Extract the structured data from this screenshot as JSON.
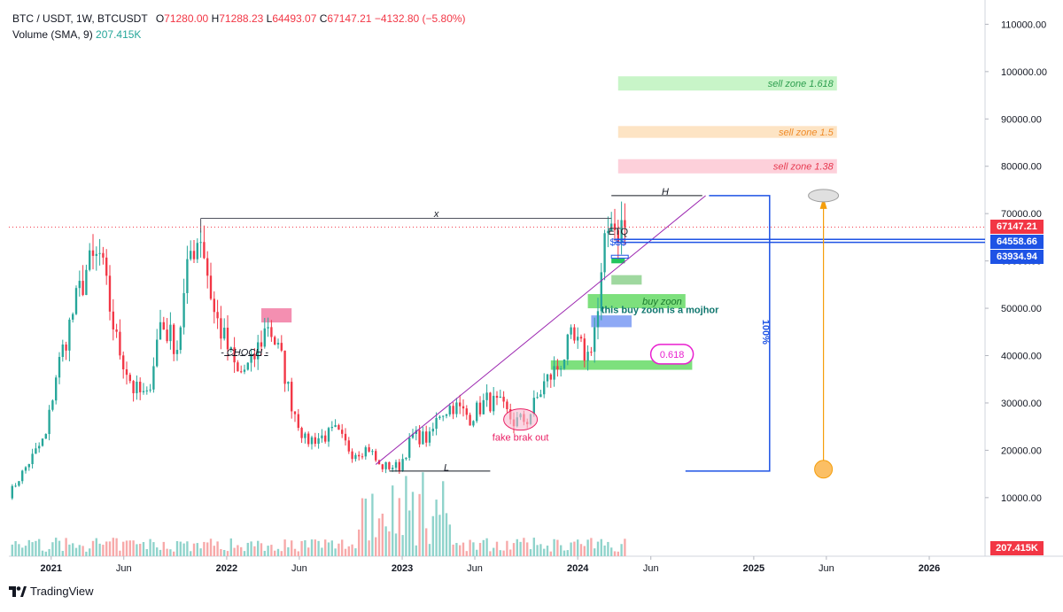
{
  "header": {
    "symbol": "BTC / USDT, 1W, BTCUSDT",
    "open_label": "O",
    "open": "71280.00",
    "high_label": "H",
    "high": "71288.23",
    "low_label": "L",
    "low": "64493.07",
    "close_label": "C",
    "close": "67147.21",
    "change": "−4132.80 (−5.80%)",
    "volume_label": "Volume (SMA, 9)",
    "volume_value": "207.415K"
  },
  "price_tags": [
    {
      "text": "67147.21",
      "price": 67147.21,
      "color": "#f23645"
    },
    {
      "text": "64558.66",
      "price": 64558.66,
      "color": "#1e53e5"
    },
    {
      "text": "63934.94",
      "price": 63934.94,
      "color": "#1e53e5"
    }
  ],
  "volume_tag": {
    "text": "207.415K",
    "color": "#f23645"
  },
  "logo": {
    "icon": "tradingview-logo",
    "text": "TradingView"
  },
  "colors": {
    "up": "#26a69a",
    "down": "#f23645",
    "annotation_blue": "#1e53e5",
    "trend": "#9c27b0"
  },
  "chart_data": {
    "type": "candlestick",
    "yaxis_ticks": [
      110000,
      100000,
      90000,
      80000,
      70000,
      60000,
      50000,
      40000,
      30000,
      20000,
      10000
    ],
    "yaxis_tick_labels": [
      "110000.00",
      "100000.00",
      "90000.00",
      "80000.00",
      "70000.00",
      "60000.00",
      "50000.00",
      "40000.00",
      "30000.00",
      "20000.00",
      "10000.00"
    ],
    "ylim": [
      0,
      115000
    ],
    "xaxis_ticks": [
      "2021",
      "Jun",
      "2022",
      "Jun",
      "2023",
      "Jun",
      "2024",
      "Jun",
      "2025",
      "Jun",
      "2026"
    ],
    "xlim": [
      "2020-10-05",
      "2026-04-27"
    ],
    "last_close": 67147.21,
    "anchors": [
      [
        "2020-10-05",
        10600
      ],
      [
        "2020-11-16",
        17500
      ],
      [
        "2020-12-21",
        23000
      ],
      [
        "2021-01-11",
        36000
      ],
      [
        "2021-02-15",
        49000
      ],
      [
        "2021-03-15",
        58000
      ],
      [
        "2021-04-12",
        61000
      ],
      [
        "2021-05-17",
        43000
      ],
      [
        "2021-06-21",
        33000
      ],
      [
        "2021-07-19",
        31000
      ],
      [
        "2021-08-16",
        47000
      ],
      [
        "2021-09-20",
        42000
      ],
      [
        "2021-10-18",
        62000
      ],
      [
        "2021-11-08",
        66000
      ],
      [
        "2021-12-06",
        49000
      ],
      [
        "2022-01-24",
        36000
      ],
      [
        "2022-02-21",
        38000
      ],
      [
        "2022-03-28",
        47000
      ],
      [
        "2022-04-25",
        39000
      ],
      [
        "2022-05-16",
        30000
      ],
      [
        "2022-06-13",
        22000
      ],
      [
        "2022-07-25",
        23000
      ],
      [
        "2022-08-15",
        24000
      ],
      [
        "2022-09-19",
        19500
      ],
      [
        "2022-10-24",
        20500
      ],
      [
        "2022-11-14",
        16600
      ],
      [
        "2022-12-26",
        16600
      ],
      [
        "2023-01-23",
        23000
      ],
      [
        "2023-02-27",
        22500
      ],
      [
        "2023-03-20",
        28000
      ],
      [
        "2023-04-17",
        29500
      ],
      [
        "2023-05-22",
        27000
      ],
      [
        "2023-06-26",
        30500
      ],
      [
        "2023-07-24",
        29300
      ],
      [
        "2023-08-21",
        26000
      ],
      [
        "2023-09-18",
        26500
      ],
      [
        "2023-10-23",
        34000
      ],
      [
        "2023-11-20",
        37500
      ],
      [
        "2023-12-18",
        43000
      ],
      [
        "2024-01-22",
        40000
      ],
      [
        "2024-02-12",
        49000
      ],
      [
        "2024-02-26",
        62000
      ],
      [
        "2024-03-11",
        71000
      ],
      [
        "2024-03-18",
        67000
      ],
      [
        "2024-04-08",
        67147
      ]
    ],
    "volume": {
      "sma_period": 9,
      "last": "207.415K"
    },
    "annotations": {
      "zones": [
        {
          "label": "sell zone 1.618",
          "low": 96000,
          "high": 99000,
          "start": "2024-03-25",
          "end": "2025-06-23",
          "fill": "#c8f5c8",
          "color": "#2e9e4f"
        },
        {
          "label": "sell zone 1.5",
          "low": 86000,
          "high": 88500,
          "start": "2024-03-25",
          "end": "2025-06-23",
          "fill": "#fde4c4",
          "color": "#f08c2a"
        },
        {
          "label": "sell zone 1.38",
          "low": 78500,
          "high": 81500,
          "start": "2024-03-25",
          "end": "2025-06-23",
          "fill": "#fdd0da",
          "color": "#e63950"
        },
        {
          "label": "buy zoon",
          "low": 50000,
          "high": 53000,
          "start": "2024-01-22",
          "end": "2024-08-12",
          "fill": "#7de07d",
          "color": "#1b7a2e"
        },
        {
          "label": "",
          "low": 37000,
          "high": 39000,
          "start": "2023-11-06",
          "end": "2024-08-26",
          "fill": "#7de07d"
        },
        {
          "label": "",
          "low": 55000,
          "high": 57000,
          "start": "2024-03-11",
          "end": "2024-05-13",
          "fill": "#9fd89f"
        },
        {
          "label": "",
          "low": 46000,
          "high": 48500,
          "start": "2024-01-29",
          "end": "2024-04-22",
          "fill": "#8ea9f5"
        },
        {
          "label": "",
          "low": 47000,
          "high": 50000,
          "start": "2022-03-14",
          "end": "2022-05-16",
          "fill": "#f48fb1"
        },
        {
          "label": "",
          "low": 59500,
          "high": 60500,
          "start": "2024-03-11",
          "end": "2024-04-08",
          "fill": "#22c55e"
        }
      ],
      "texts": [
        {
          "text": "this buy zoon is a mojhor",
          "date": "2024-02-19",
          "price": 49000,
          "color": "#0f766e"
        },
        {
          "text": "fake brak out",
          "date": "2023-09-04",
          "price": 22000,
          "color": "#e91e63"
        },
        {
          "text": "- CHOCH -",
          "date": "2022-02-07",
          "price": 40000,
          "color": "#131722"
        },
        {
          "text": "x",
          "date": "2023-03-13",
          "price": 69300,
          "color": "#131722"
        },
        {
          "text": "H",
          "date": "2024-07-01",
          "price": 74000,
          "color": "#131722"
        },
        {
          "text": "L",
          "date": "2023-04-03",
          "price": 15700,
          "color": "#131722"
        },
        {
          "text": "100%",
          "date": "2025-01-20",
          "price": 45000,
          "color": "#1e53e5"
        },
        {
          "text": "ETQ",
          "date": "2024-03-25",
          "price": 65500,
          "color": "#131722"
        },
        {
          "text": "$$$",
          "date": "2024-03-25",
          "price": 63300,
          "color": "#1e53e5"
        }
      ],
      "fib_label": {
        "text": "0.618",
        "date": "2024-07-15",
        "price": 40300,
        "color": "#e91ecf"
      }
    }
  }
}
